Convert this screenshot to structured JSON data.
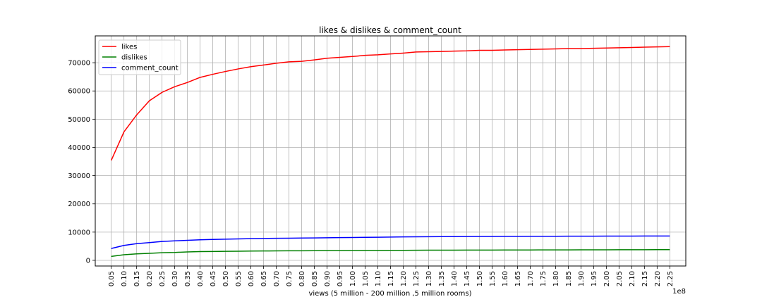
{
  "chart_data": {
    "type": "line",
    "title": "likes & dislikes & comment_count",
    "xlabel": "views (5 million - 200 million ,5 million rooms)",
    "ylabel": "",
    "x_offset_label": "1e8",
    "x": [
      0.05,
      0.1,
      0.15,
      0.2,
      0.25,
      0.3,
      0.35,
      0.4,
      0.45,
      0.5,
      0.55,
      0.6,
      0.65,
      0.7,
      0.75,
      0.8,
      0.85,
      0.9,
      0.95,
      1.0,
      1.05,
      1.1,
      1.15,
      1.2,
      1.25,
      1.3,
      1.35,
      1.4,
      1.45,
      1.5,
      1.55,
      1.6,
      1.65,
      1.7,
      1.75,
      1.8,
      1.85,
      1.9,
      1.95,
      2.0,
      2.05,
      2.1,
      2.15,
      2.2,
      2.25
    ],
    "x_tick_labels": [
      "0.05",
      "0.10",
      "0.15",
      "0.20",
      "0.25",
      "0.30",
      "0.35",
      "0.40",
      "0.45",
      "0.50",
      "0.55",
      "0.60",
      "0.65",
      "0.70",
      "0.75",
      "0.80",
      "0.85",
      "0.90",
      "0.95",
      "1.00",
      "1.05",
      "1.10",
      "1.15",
      "1.20",
      "1.25",
      "1.30",
      "1.35",
      "1.40",
      "1.45",
      "1.50",
      "1.55",
      "1.60",
      "1.65",
      "1.70",
      "1.75",
      "1.80",
      "1.85",
      "1.90",
      "1.95",
      "2.00",
      "2.05",
      "2.10",
      "2.15",
      "2.20",
      "2.25"
    ],
    "xlim": [
      -0.013,
      2.313
    ],
    "ylim": [
      -2000,
      79500
    ],
    "y_ticks": [
      0,
      10000,
      20000,
      30000,
      40000,
      50000,
      60000,
      70000
    ],
    "y_tick_labels": [
      "0",
      "10000",
      "20000",
      "30000",
      "40000",
      "50000",
      "60000",
      "70000"
    ],
    "grid": true,
    "legend_position": "top-left",
    "series": [
      {
        "name": "likes",
        "color": "#ff0000",
        "values": [
          35400,
          45500,
          51500,
          56500,
          59500,
          61500,
          63000,
          64800,
          65900,
          66900,
          67800,
          68600,
          69200,
          69800,
          70300,
          70500,
          71000,
          71600,
          71900,
          72200,
          72600,
          72800,
          73100,
          73400,
          73800,
          73900,
          74000,
          74100,
          74200,
          74400,
          74400,
          74500,
          74600,
          74700,
          74800,
          74900,
          75000,
          75000,
          75100,
          75200,
          75300,
          75400,
          75500,
          75600,
          75700
        ]
      },
      {
        "name": "dislikes",
        "color": "#008000",
        "values": [
          1400,
          2000,
          2300,
          2500,
          2700,
          2800,
          3000,
          3100,
          3150,
          3200,
          3250,
          3300,
          3320,
          3350,
          3380,
          3400,
          3420,
          3440,
          3460,
          3480,
          3500,
          3520,
          3540,
          3560,
          3580,
          3600,
          3610,
          3620,
          3630,
          3640,
          3650,
          3660,
          3670,
          3680,
          3690,
          3700,
          3710,
          3720,
          3730,
          3740,
          3750,
          3760,
          3770,
          3780,
          3790
        ]
      },
      {
        "name": "comment_count",
        "color": "#0000ff",
        "values": [
          4200,
          5300,
          5900,
          6300,
          6700,
          6900,
          7100,
          7300,
          7400,
          7500,
          7600,
          7700,
          7750,
          7800,
          7850,
          7900,
          7950,
          8000,
          8050,
          8100,
          8150,
          8200,
          8250,
          8300,
          8350,
          8380,
          8400,
          8420,
          8440,
          8460,
          8480,
          8500,
          8510,
          8520,
          8530,
          8540,
          8550,
          8560,
          8570,
          8580,
          8590,
          8600,
          8610,
          8620,
          8630
        ]
      }
    ]
  }
}
